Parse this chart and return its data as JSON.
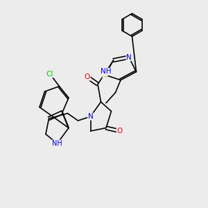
{
  "bg_color": "#ececec",
  "bond_color": "#000000",
  "bond_width": 1.2,
  "atom_colors": {
    "N": "#0000ff",
    "O": "#ff0000",
    "S": "#cccc00",
    "Cl": "#00cc00",
    "C": "#000000",
    "H": "#888888"
  },
  "font_size": 7.5
}
